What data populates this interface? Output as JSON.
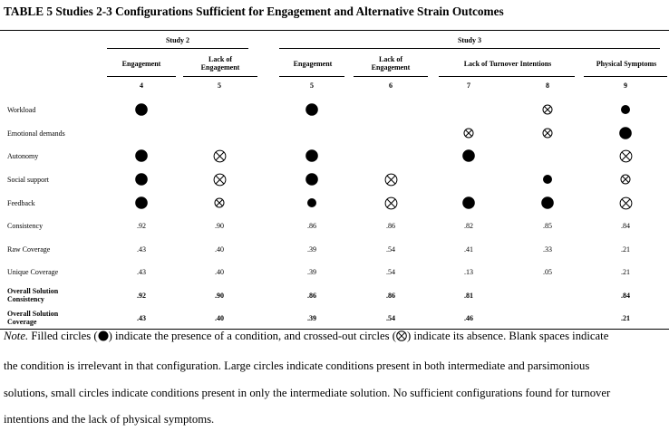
{
  "title": "TABLE 5  Studies 2-3 Configurations Sufficient for Engagement and Alternative Strain Outcomes",
  "studies": [
    {
      "label": "Study 2"
    },
    {
      "label": "Study 3"
    }
  ],
  "outcomes": [
    {
      "line1": "Engagement",
      "line2": ""
    },
    {
      "line1": "Lack of",
      "line2": "Engagement"
    },
    {
      "line1": "Engagement",
      "line2": ""
    },
    {
      "line1": "Lack of",
      "line2": "Engagement"
    },
    {
      "line1": "Lack of Turnover Intentions",
      "line2": ""
    },
    {
      "line1": "Physical Symptoms",
      "line2": ""
    }
  ],
  "config_numbers": [
    "4",
    "5",
    "5",
    "6",
    "7",
    "8",
    "9"
  ],
  "legend": {
    "filled_large": "core condition present",
    "filled_small": "peripheral condition present",
    "crossed_large": "core condition absent",
    "crossed_small": "peripheral condition absent"
  },
  "conditions": [
    {
      "label": "Workload",
      "marks": [
        "big-filled",
        "",
        "big-filled",
        "",
        "",
        "small-crossed",
        "small-filled"
      ]
    },
    {
      "label": "Emotional demands",
      "marks": [
        "",
        "",
        "",
        "",
        "small-crossed",
        "small-crossed",
        "big-filled"
      ]
    },
    {
      "label": "Autonomy",
      "marks": [
        "big-filled",
        "big-crossed",
        "big-filled",
        "",
        "big-filled",
        "",
        "big-crossed"
      ]
    },
    {
      "label": "Social support",
      "marks": [
        "big-filled",
        "big-crossed",
        "big-filled",
        "big-crossed",
        "",
        "small-filled",
        "small-crossed"
      ]
    },
    {
      "label": "Feedback",
      "marks": [
        "big-filled",
        "small-crossed",
        "small-filled",
        "big-crossed",
        "big-filled",
        "big-filled",
        "big-crossed"
      ]
    }
  ],
  "metrics": [
    {
      "label": "Consistency",
      "bold": false,
      "values": [
        ".92",
        ".90",
        ".86",
        ".86",
        ".82",
        ".85",
        ".84"
      ]
    },
    {
      "label": "Raw Coverage",
      "bold": false,
      "values": [
        ".43",
        ".40",
        ".39",
        ".54",
        ".41",
        ".33",
        ".21"
      ]
    },
    {
      "label": "Unique Coverage",
      "bold": false,
      "values": [
        ".43",
        ".40",
        ".39",
        ".54",
        ".13",
        ".05",
        ".21"
      ]
    },
    {
      "label": "Overall Solution Consistency",
      "line1": "Overall Solution",
      "line2": "Consistency",
      "bold": true,
      "values": [
        ".92",
        ".90",
        ".86",
        ".86",
        ".81",
        "",
        ".84"
      ]
    },
    {
      "label": "Overall Solution Coverage",
      "line1": "Overall Solution",
      "line2": "Coverage",
      "bold": true,
      "values": [
        ".43",
        ".40",
        ".39",
        ".54",
        ".46",
        "",
        ".21"
      ]
    }
  ],
  "note": {
    "lead": "Note.",
    "line1_a": " Filled circles (",
    "line1_b": ") indicate the presence of a condition, and crossed-out circles (",
    "line1_c": ") indicate its absence. Blank spaces indicate",
    "line2": "the condition is irrelevant in that configuration. Large circles indicate conditions present in both intermediate and parsimonious",
    "line3": "solutions, small circles indicate conditions present in only the intermediate solution. No sufficient configurations found for turnover",
    "line4": "intentions and the lack of physical symptoms."
  }
}
